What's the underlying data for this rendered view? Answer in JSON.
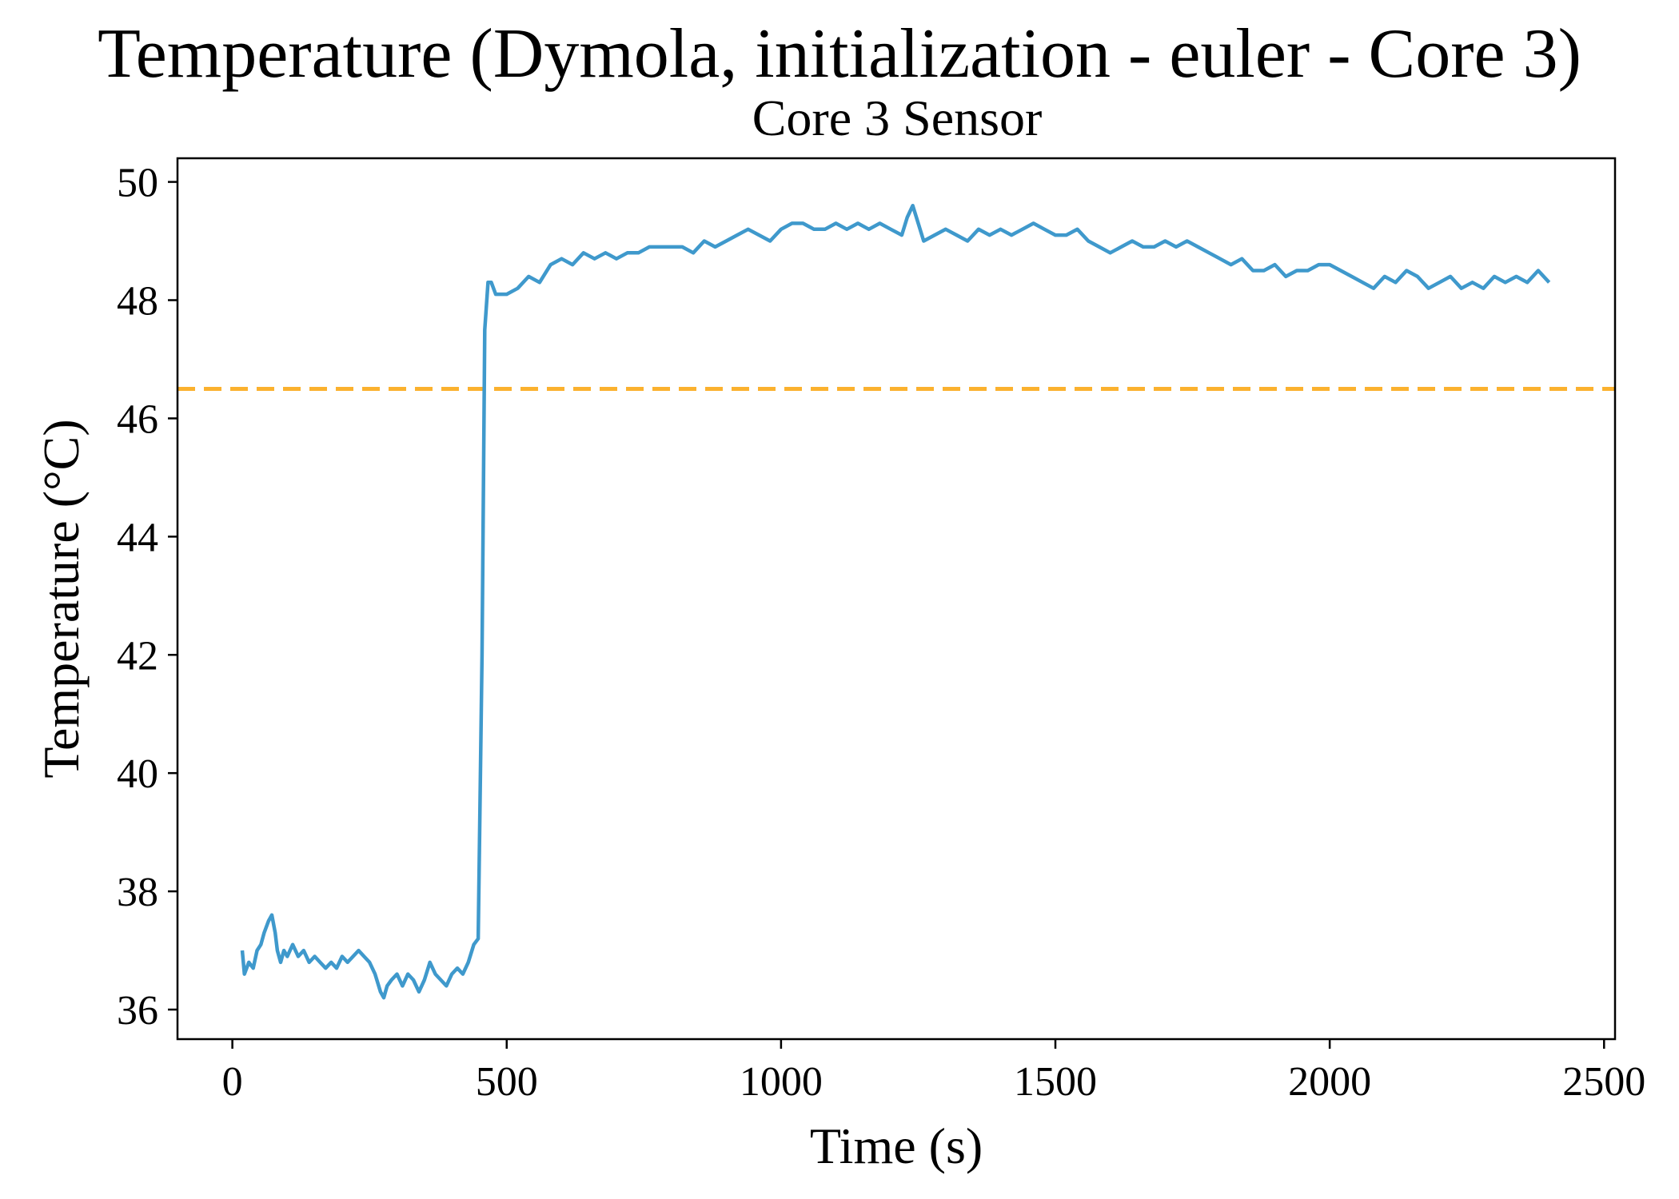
{
  "chart_data": {
    "type": "line",
    "title": "Temperature (Dymola, initialization - euler - Core 3)",
    "subtitle": "Core 3 Sensor",
    "xlabel": "Time (s)",
    "ylabel": "Temperature (°C)",
    "xlim": [
      -100,
      2520
    ],
    "ylim": [
      35.5,
      50.4
    ],
    "xticks": [
      0,
      500,
      1000,
      1500,
      2000,
      2500
    ],
    "yticks": [
      36,
      38,
      40,
      42,
      44,
      46,
      48,
      50
    ],
    "grid": false,
    "series": [
      {
        "color": "#3f99cc",
        "x": [
          18,
          22,
          30,
          38,
          45,
          52,
          58,
          66,
          72,
          78,
          82,
          88,
          94,
          100,
          110,
          120,
          130,
          140,
          150,
          160,
          170,
          180,
          190,
          200,
          210,
          220,
          230,
          240,
          250,
          260,
          270,
          276,
          282,
          290,
          300,
          310,
          320,
          330,
          340,
          350,
          360,
          370,
          380,
          390,
          400,
          410,
          420,
          430,
          440,
          448,
          455,
          460,
          466,
          472,
          480,
          490,
          500,
          520,
          540,
          560,
          580,
          600,
          620,
          640,
          660,
          680,
          700,
          720,
          740,
          760,
          780,
          800,
          820,
          840,
          860,
          880,
          900,
          920,
          940,
          960,
          980,
          1000,
          1020,
          1040,
          1060,
          1080,
          1100,
          1120,
          1140,
          1160,
          1180,
          1200,
          1220,
          1230,
          1240,
          1250,
          1260,
          1280,
          1300,
          1320,
          1340,
          1360,
          1380,
          1400,
          1420,
          1440,
          1460,
          1480,
          1500,
          1520,
          1540,
          1560,
          1580,
          1600,
          1620,
          1640,
          1660,
          1680,
          1700,
          1720,
          1740,
          1760,
          1780,
          1800,
          1820,
          1840,
          1860,
          1880,
          1900,
          1920,
          1940,
          1960,
          1980,
          2000,
          2020,
          2040,
          2060,
          2080,
          2100,
          2120,
          2140,
          2160,
          2180,
          2200,
          2220,
          2240,
          2260,
          2280,
          2300,
          2320,
          2340,
          2360,
          2380,
          2400
        ],
        "y": [
          37.0,
          36.6,
          36.8,
          36.7,
          37.0,
          37.1,
          37.3,
          37.5,
          37.6,
          37.3,
          37.0,
          36.8,
          37.0,
          36.9,
          37.1,
          36.9,
          37.0,
          36.8,
          36.9,
          36.8,
          36.7,
          36.8,
          36.7,
          36.9,
          36.8,
          36.9,
          37.0,
          36.9,
          36.8,
          36.6,
          36.3,
          36.2,
          36.4,
          36.5,
          36.6,
          36.4,
          36.6,
          36.5,
          36.3,
          36.5,
          36.8,
          36.6,
          36.5,
          36.4,
          36.6,
          36.7,
          36.6,
          36.8,
          37.1,
          37.2,
          42.0,
          47.5,
          48.3,
          48.3,
          48.1,
          48.1,
          48.1,
          48.2,
          48.4,
          48.3,
          48.6,
          48.7,
          48.6,
          48.8,
          48.7,
          48.8,
          48.7,
          48.8,
          48.8,
          48.9,
          48.9,
          48.9,
          48.9,
          48.8,
          49.0,
          48.9,
          49.0,
          49.1,
          49.2,
          49.1,
          49.0,
          49.2,
          49.3,
          49.3,
          49.2,
          49.2,
          49.3,
          49.2,
          49.3,
          49.2,
          49.3,
          49.2,
          49.1,
          49.4,
          49.6,
          49.3,
          49.0,
          49.1,
          49.2,
          49.1,
          49.0,
          49.2,
          49.1,
          49.2,
          49.1,
          49.2,
          49.3,
          49.2,
          49.1,
          49.1,
          49.2,
          49.0,
          48.9,
          48.8,
          48.9,
          49.0,
          48.9,
          48.9,
          49.0,
          48.9,
          49.0,
          48.9,
          48.8,
          48.7,
          48.6,
          48.7,
          48.5,
          48.5,
          48.6,
          48.4,
          48.5,
          48.5,
          48.6,
          48.6,
          48.5,
          48.4,
          48.3,
          48.2,
          48.4,
          48.3,
          48.5,
          48.4,
          48.2,
          48.3,
          48.4,
          48.2,
          48.3,
          48.2,
          48.4,
          48.3,
          48.4,
          48.3,
          48.5,
          48.3
        ]
      }
    ],
    "reference_lines": [
      {
        "orientation": "horizontal",
        "y": 46.5,
        "color": "#fbb12e",
        "style": "dashed"
      }
    ]
  }
}
